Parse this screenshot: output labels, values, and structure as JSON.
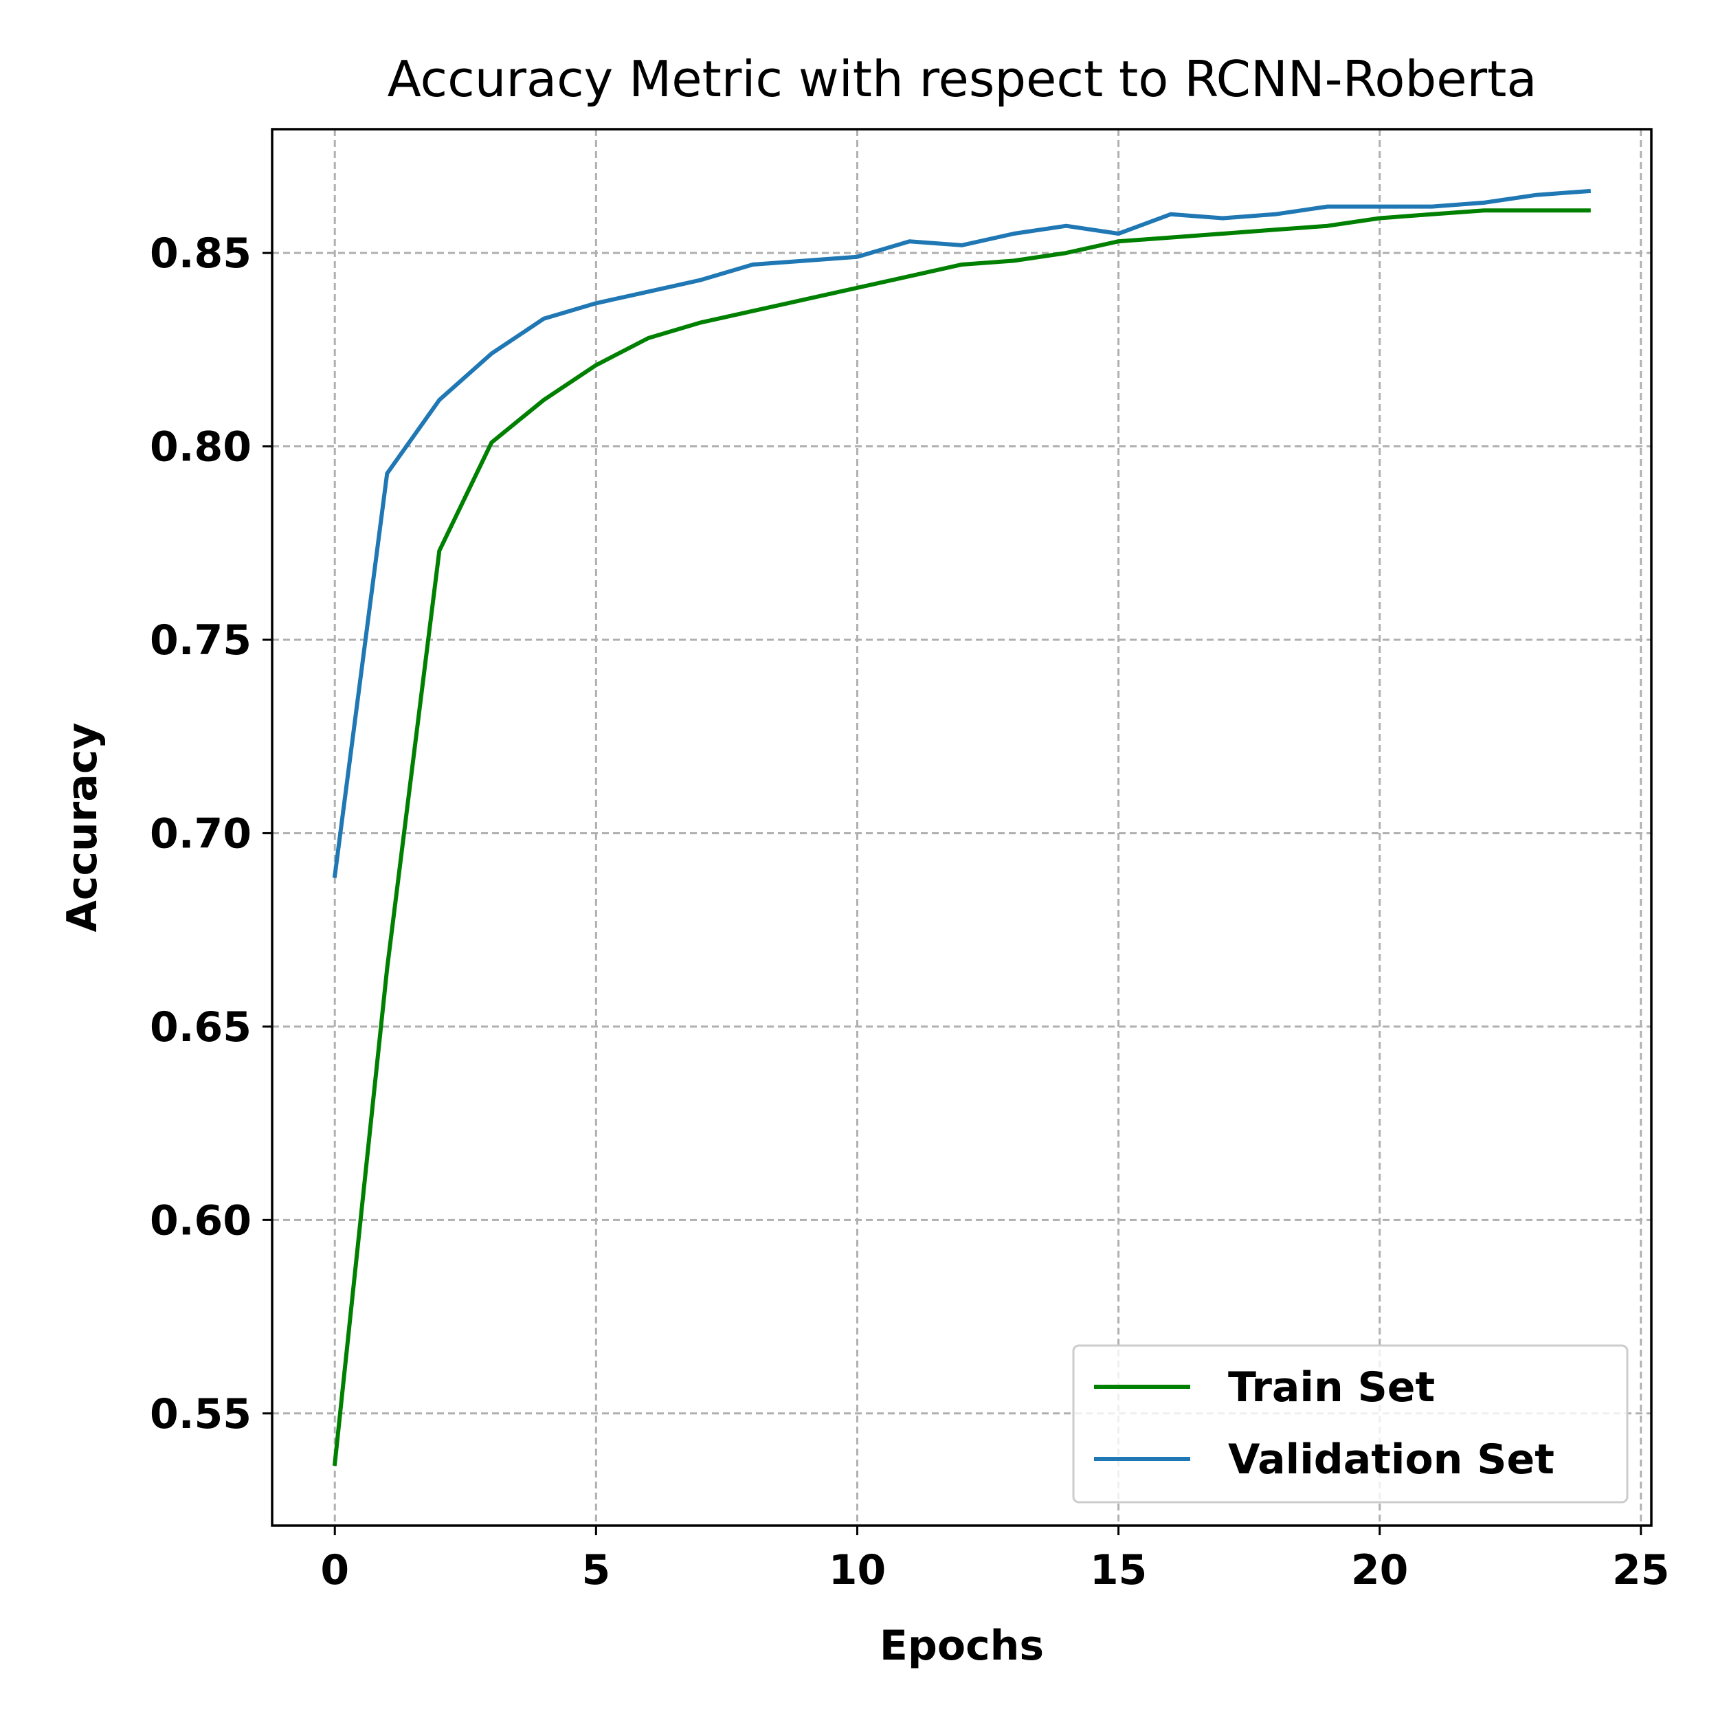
{
  "chart_data": {
    "type": "line",
    "title": "Accuracy Metric with respect to RCNN-Roberta",
    "xlabel": "Epochs",
    "ylabel": "Accuracy",
    "xlim": [
      -1.2,
      25.2
    ],
    "ylim": [
      0.521,
      0.882
    ],
    "xticks": [
      0,
      5,
      10,
      15,
      20,
      25
    ],
    "xtick_labels": [
      "0",
      "5",
      "10",
      "15",
      "20",
      "25"
    ],
    "yticks": [
      0.55,
      0.6,
      0.65,
      0.7,
      0.75,
      0.8,
      0.85
    ],
    "ytick_labels": [
      "0.55",
      "0.60",
      "0.65",
      "0.70",
      "0.75",
      "0.80",
      "0.85"
    ],
    "grid": true,
    "legend_position": "bottom-right",
    "x": [
      0,
      1,
      2,
      3,
      4,
      5,
      6,
      7,
      8,
      9,
      10,
      11,
      12,
      13,
      14,
      15,
      16,
      17,
      18,
      19,
      20,
      21,
      22,
      23,
      24
    ],
    "series": [
      {
        "name": "Train Set",
        "color": "#008000",
        "values": [
          0.537,
          0.665,
          0.773,
          0.801,
          0.812,
          0.821,
          0.828,
          0.832,
          0.835,
          0.838,
          0.841,
          0.844,
          0.847,
          0.848,
          0.85,
          0.853,
          0.854,
          0.855,
          0.856,
          0.857,
          0.859,
          0.86,
          0.861,
          0.861,
          0.861
        ]
      },
      {
        "name": "Validation Set",
        "color": "#1f77b4",
        "values": [
          0.689,
          0.793,
          0.812,
          0.824,
          0.833,
          0.837,
          0.84,
          0.843,
          0.847,
          0.848,
          0.849,
          0.853,
          0.852,
          0.855,
          0.857,
          0.855,
          0.86,
          0.859,
          0.86,
          0.862,
          0.862,
          0.862,
          0.863,
          0.865,
          0.866
        ]
      }
    ]
  }
}
